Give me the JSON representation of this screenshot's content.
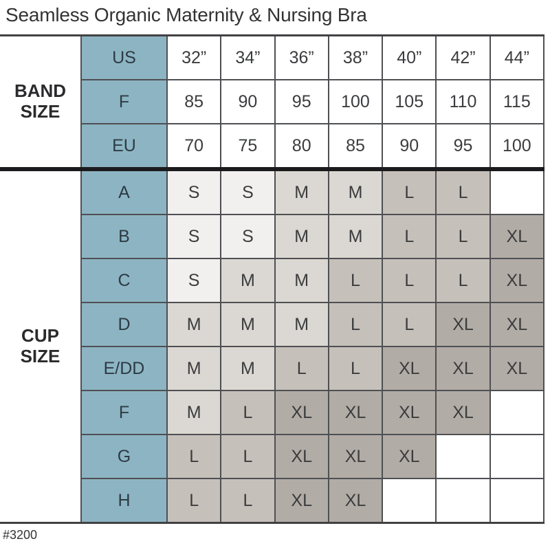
{
  "title": "Seamless Organic Maternity & Nursing Bra",
  "footnote": "#3200",
  "colors": {
    "teal": "#8db4c2",
    "teal_text": "#2c3b45",
    "cell_text": "#3b3c3e",
    "label_text": "#2b2b2d",
    "title_text": "#333335",
    "size_s": "#f2f0ee",
    "size_m": "#dbd7d2",
    "size_l": "#c6c0ba",
    "size_xl": "#b2aca6",
    "empty": "#ffffff",
    "border_thin": "#4e4f53",
    "border_frame": "#414144",
    "border_heavy": "#1b1b1d"
  },
  "chart_data": {
    "type": "table",
    "title": "Seamless Organic Maternity & Nursing Bra",
    "band_section": {
      "label": "BAND SIZE",
      "rows": [
        {
          "label": "US",
          "values": [
            "32”",
            "34”",
            "36”",
            "38”",
            "40”",
            "42”",
            "44”"
          ]
        },
        {
          "label": "F",
          "values": [
            "85",
            "90",
            "95",
            "100",
            "105",
            "110",
            "115"
          ]
        },
        {
          "label": "EU",
          "values": [
            "70",
            "75",
            "80",
            "85",
            "90",
            "95",
            "100"
          ]
        }
      ]
    },
    "cup_section": {
      "label": "CUP SIZE",
      "rows": [
        {
          "label": "A",
          "values": [
            "S",
            "S",
            "M",
            "M",
            "L",
            "L",
            ""
          ]
        },
        {
          "label": "B",
          "values": [
            "S",
            "S",
            "M",
            "M",
            "L",
            "L",
            "XL"
          ]
        },
        {
          "label": "C",
          "values": [
            "S",
            "M",
            "M",
            "L",
            "L",
            "L",
            "XL"
          ]
        },
        {
          "label": "D",
          "values": [
            "M",
            "M",
            "M",
            "L",
            "L",
            "XL",
            "XL"
          ]
        },
        {
          "label": "E/DD",
          "values": [
            "M",
            "M",
            "L",
            "L",
            "XL",
            "XL",
            "XL"
          ]
        },
        {
          "label": "F",
          "values": [
            "M",
            "L",
            "XL",
            "XL",
            "XL",
            "XL",
            ""
          ]
        },
        {
          "label": "G",
          "values": [
            "L",
            "L",
            "XL",
            "XL",
            "XL",
            "",
            ""
          ]
        },
        {
          "label": "H",
          "values": [
            "L",
            "L",
            "XL",
            "XL",
            "",
            "",
            ""
          ]
        }
      ]
    },
    "size_shading_legend": {
      "S": "#f2f0ee",
      "M": "#dbd7d2",
      "L": "#c6c0ba",
      "XL": "#b2aca6"
    }
  }
}
